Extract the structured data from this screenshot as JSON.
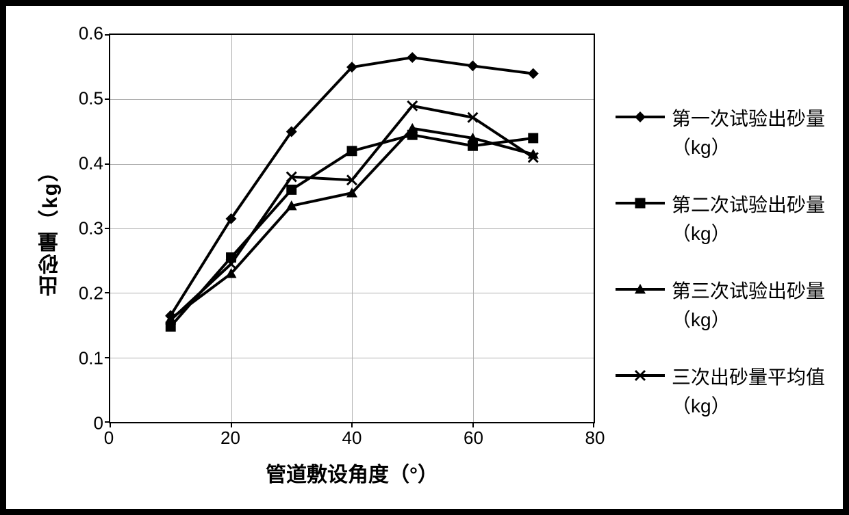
{
  "chart": {
    "type": "line",
    "border_color": "#000000",
    "frame_border_width": 9,
    "background_color": "#ffffff",
    "grid_color": "#b0b0b0",
    "plot_border_width": 2,
    "xlabel": "管道敷设角度（°）",
    "ylabel": "出砂量（kg）",
    "label_fontsize": 30,
    "tick_fontsize": 26,
    "legend_fontsize": 28,
    "xlim": [
      0,
      80
    ],
    "ylim": [
      0,
      0.6
    ],
    "xtick_step": 20,
    "ytick_step": 0.1,
    "xticks": [
      0,
      20,
      40,
      60,
      80
    ],
    "yticks": [
      0,
      0.1,
      0.2,
      0.3,
      0.4,
      0.5,
      0.6
    ],
    "x_values": [
      10,
      20,
      30,
      40,
      50,
      60,
      70
    ],
    "line_width": 4,
    "series": [
      {
        "id": "s1",
        "label_line1": "第一次试验出砂量",
        "label_line2": "（kg）",
        "marker": "diamond",
        "marker_size": 16,
        "color": "#000000",
        "values": [
          0.165,
          0.315,
          0.45,
          0.55,
          0.565,
          0.552,
          0.54
        ]
      },
      {
        "id": "s2",
        "label_line1": "第二次试验出砂量",
        "label_line2": "（kg）",
        "marker": "square",
        "marker_size": 15,
        "color": "#000000",
        "values": [
          0.148,
          0.255,
          0.36,
          0.42,
          0.445,
          0.428,
          0.44
        ]
      },
      {
        "id": "s3",
        "label_line1": "第三次试验出砂量",
        "label_line2": "（kg）",
        "marker": "triangle",
        "marker_size": 16,
        "color": "#000000",
        "values": [
          0.16,
          0.23,
          0.335,
          0.355,
          0.455,
          0.44,
          0.415
        ]
      },
      {
        "id": "avg",
        "label_line1": "三次出砂量平均值",
        "label_line2": "（kg）",
        "marker": "x",
        "marker_size": 14,
        "color": "#000000",
        "values": [
          0.158,
          0.245,
          0.38,
          0.375,
          0.49,
          0.472,
          0.41
        ]
      }
    ]
  }
}
